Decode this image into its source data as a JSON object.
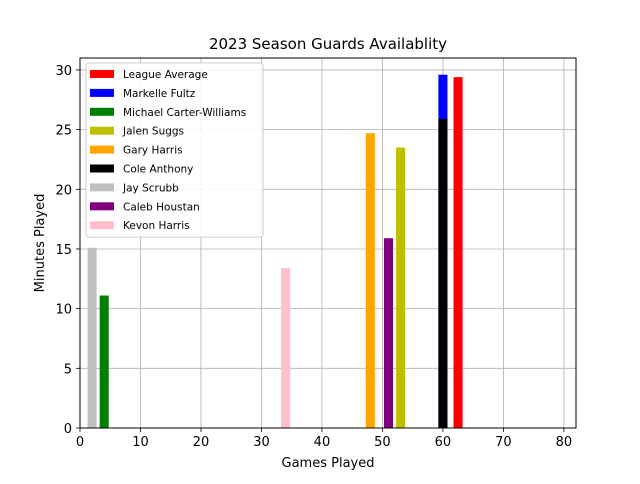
{
  "chart_data": {
    "type": "bar",
    "title": "2023 Season Guards Availablity",
    "xlabel": "Games Played",
    "ylabel": "Minutes Played",
    "xlim": [
      0,
      82
    ],
    "ylim": [
      0,
      31
    ],
    "xticks": [
      0,
      10,
      20,
      30,
      40,
      50,
      60,
      70,
      80
    ],
    "yticks": [
      0,
      5,
      10,
      15,
      20,
      25,
      30
    ],
    "grid": true,
    "legend_position": "upper-left",
    "bar_width_games": 1.5,
    "series": [
      {
        "name": "League Average",
        "color": "#ff0000",
        "x": 62.5,
        "y": 29.4
      },
      {
        "name": "Markelle Fultz",
        "color": "#0000ff",
        "x": 60,
        "y": 29.6
      },
      {
        "name": "Michael Carter-Williams",
        "color": "#008000",
        "x": 4,
        "y": 11.1
      },
      {
        "name": "Jalen Suggs",
        "color": "#bfbf00",
        "x": 53,
        "y": 23.5
      },
      {
        "name": "Gary Harris",
        "color": "#ffa500",
        "x": 48,
        "y": 24.7
      },
      {
        "name": "Cole Anthony",
        "color": "#000000",
        "x": 60,
        "y": 25.9
      },
      {
        "name": "Jay Scrubb",
        "color": "#c0c0c0",
        "x": 2,
        "y": 15.1
      },
      {
        "name": "Caleb Houstan",
        "color": "#800080",
        "x": 51,
        "y": 15.9
      },
      {
        "name": "Kevon Harris",
        "color": "#ffc0cb",
        "x": 34,
        "y": 13.4
      }
    ]
  }
}
